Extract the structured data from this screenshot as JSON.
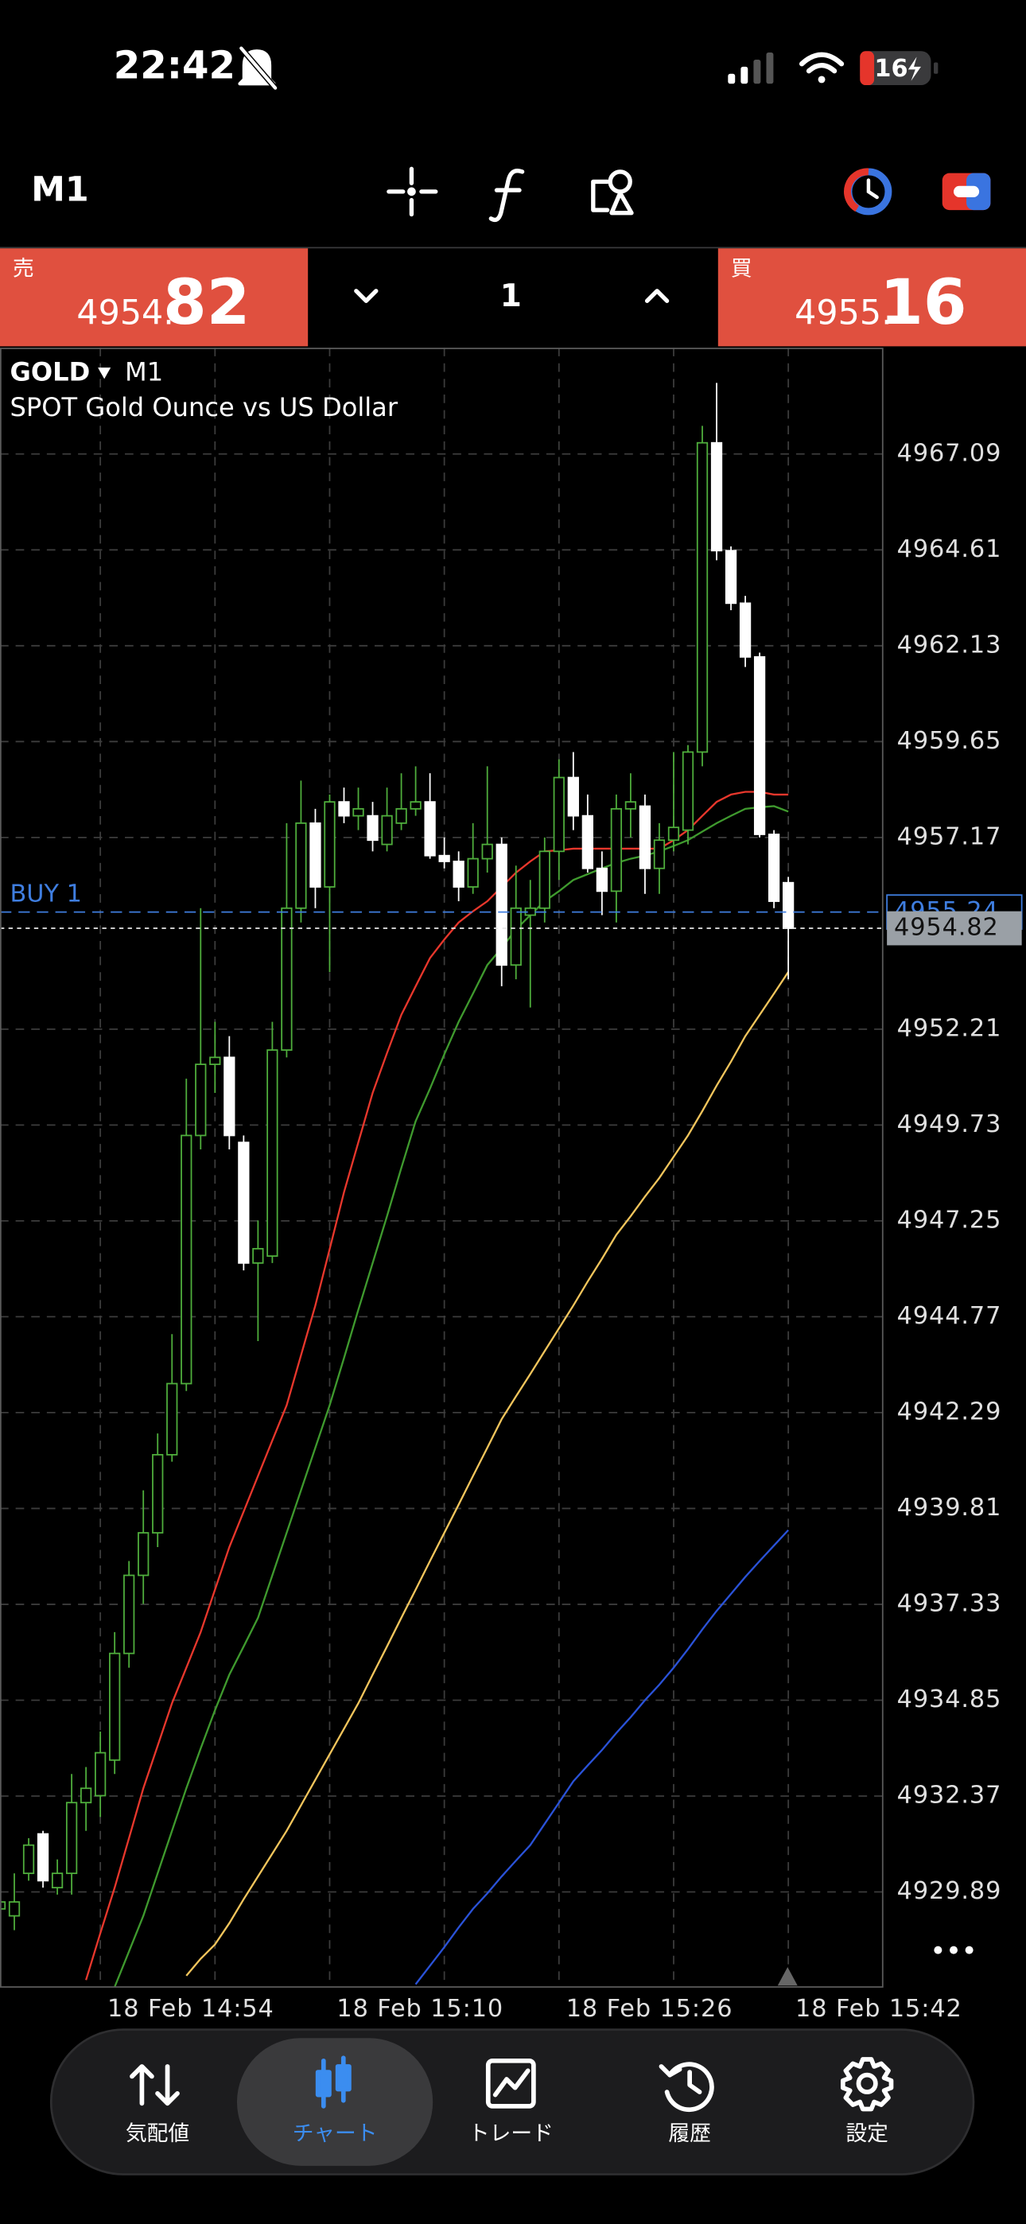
{
  "status_bar": {
    "time": "22:42",
    "battery": "16"
  },
  "toolbar": {
    "timeframe": "M1"
  },
  "trade_panel": {
    "sell_label": "売",
    "sell_price_small": "4954.",
    "sell_price_big": "82",
    "volume": "1",
    "buy_label": "買",
    "buy_price_small": "4955.",
    "buy_price_big": "16"
  },
  "chart_data": {
    "type": "candlestick",
    "symbol": "GOLD",
    "timeframe": "M1",
    "subtitle": "SPOT Gold Ounce vs US Dollar",
    "categories": [
      null,
      null,
      null,
      null,
      null,
      null,
      null,
      "18 Feb 14:54",
      null,
      null,
      null,
      null,
      null,
      null,
      null,
      null,
      null,
      null,
      null,
      null,
      null,
      null,
      null,
      "18 Feb 15:10",
      null,
      null,
      null,
      null,
      null,
      null,
      null,
      null,
      null,
      null,
      null,
      null,
      null,
      null,
      null,
      "18 Feb 15:26",
      null,
      null,
      null,
      null,
      null,
      null,
      null,
      null,
      null,
      null,
      null,
      null,
      null,
      null,
      null,
      "18 Feb 15:42"
    ],
    "open": [
      4929.45,
      4929.27,
      4930.37,
      4931.39,
      4930,
      4930.37,
      4932.2,
      4932.38,
      4933.3,
      4936.06,
      4938.08,
      4939.18,
      4941.2,
      4943.04,
      4949.46,
      4951.3,
      4951.48,
      4949.28,
      4946.16,
      4946.34,
      4951.67,
      4955.34,
      4957.54,
      4955.89,
      4958.09,
      4957.73,
      4957.73,
      4956.99,
      4957.54,
      4957.91,
      4958.09,
      4956.7,
      4956.55,
      4955.89,
      4956.62,
      4956.99,
      4953.87,
      4955.16,
      4955.34,
      4956.81,
      4958.72,
      4957.73,
      4956.37,
      4955.78,
      4957.91,
      4957.98,
      4956.37,
      4957.1,
      4957.36,
      4959.38,
      4967.38,
      4964.59,
      4963.23,
      4961.84,
      4957.25,
      4956
    ],
    "high": [
      4930,
      4930.37,
      4931.28,
      4931.47,
      4930.73,
      4932.94,
      4933.12,
      4934.04,
      4936.61,
      4938.45,
      4940.28,
      4941.75,
      4944.32,
      4950.93,
      4955.34,
      4952.4,
      4952.03,
      4949.46,
      4947.26,
      4952.4,
      4957.54,
      4958.64,
      4957.91,
      4958.28,
      4958.46,
      4958.46,
      4958.09,
      4958.46,
      4958.83,
      4959.01,
      4958.83,
      4957.17,
      4956.81,
      4957.54,
      4959.01,
      4957.17,
      4956.44,
      4956.07,
      4957.17,
      4959.19,
      4959.38,
      4958.28,
      4956.81,
      4958.28,
      4958.83,
      4958.28,
      4957.54,
      4959.38,
      4959.56,
      4967.82,
      4968.93,
      4964.7,
      4963.42,
      4961.95,
      4957.36,
      4956.15
    ],
    "low": [
      4929.08,
      4928.9,
      4930.18,
      4930,
      4929.82,
      4929.82,
      4931.47,
      4931.83,
      4932.94,
      4935.69,
      4937.34,
      4938.81,
      4941.02,
      4942.85,
      4949.1,
      4950.56,
      4949.1,
      4945.97,
      4944.14,
      4946.16,
      4951.48,
      4954.97,
      4955.34,
      4953.69,
      4957.54,
      4957.36,
      4956.81,
      4956.81,
      4957.36,
      4957.73,
      4956.62,
      4956.37,
      4955.52,
      4955.71,
      4956.26,
      4953.32,
      4953.5,
      4952.77,
      4954.97,
      4956.07,
      4957.36,
      4956.26,
      4955.16,
      4954.97,
      4957.17,
      4955.71,
      4955.71,
      4956.81,
      4956.99,
      4959.01,
      4964.34,
      4963.05,
      4961.58,
      4957.17,
      4955.34,
      4953.5
    ],
    "close": [
      4929.63,
      4929.63,
      4931.1,
      4930.18,
      4930.37,
      4932.2,
      4932.57,
      4933.49,
      4936.06,
      4938.08,
      4939.18,
      4941.2,
      4943.04,
      4949.46,
      4951.3,
      4951.48,
      4949.46,
      4946.16,
      4946.53,
      4951.67,
      4955.34,
      4957.54,
      4955.89,
      4958.09,
      4957.73,
      4957.91,
      4957.1,
      4957.73,
      4957.91,
      4958.09,
      4956.7,
      4956.55,
      4955.89,
      4956.62,
      4956.99,
      4953.87,
      4955.34,
      4955.34,
      4956.81,
      4958.72,
      4957.73,
      4956.37,
      4955.78,
      4957.91,
      4958.09,
      4956.37,
      4957.1,
      4957.43,
      4959.38,
      4967.38,
      4964.59,
      4963.23,
      4961.84,
      4957.25,
      4955.52,
      4954.82
    ],
    "up_color": "#4fae3c",
    "down_color": "#ffffff",
    "series": [
      {
        "color": "#e8372c",
        "values": [
          null,
          null,
          null,
          null,
          null,
          null,
          4927.61,
          4928.82,
          4930,
          4931.28,
          4932.57,
          4933.67,
          4934.77,
          4935.69,
          4936.61,
          4937.71,
          4938.81,
          4939.73,
          4940.65,
          4941.57,
          4942.48,
          4943.77,
          4945.06,
          4946.52,
          4947.99,
          4949.28,
          4950.56,
          4951.59,
          4952.58,
          4953.32,
          4954.05,
          4954.53,
          4954.97,
          4955.26,
          4955.52,
          4955.89,
          4956.26,
          4956.55,
          4956.81,
          4956.84,
          4956.88,
          4956.88,
          4956.88,
          4956.88,
          4956.88,
          4956.88,
          4956.88,
          4957.1,
          4957.36,
          4957.73,
          4958.09,
          4958.28,
          4958.35,
          4958.35,
          4958.28,
          4958.28
        ]
      },
      {
        "color": "#3f9a2e",
        "values": [
          null,
          null,
          null,
          null,
          null,
          null,
          null,
          null,
          4927.43,
          4928.35,
          4929.27,
          4930.37,
          4931.47,
          4932.57,
          4933.6,
          4934.59,
          4935.51,
          4936.24,
          4936.98,
          4938.08,
          4939.18,
          4940.28,
          4941.38,
          4942.48,
          4943.7,
          4944.95,
          4946.16,
          4947.37,
          4948.62,
          4949.83,
          4950.67,
          4951.56,
          4952.4,
          4953.13,
          4953.87,
          4954.31,
          4954.79,
          4955.16,
          4955.52,
          4955.78,
          4956.07,
          4956.22,
          4956.37,
          4956.51,
          4956.62,
          4956.7,
          4956.81,
          4956.95,
          4957.1,
          4957.32,
          4957.54,
          4957.73,
          4957.91,
          4957.95,
          4957.98,
          4957.84
        ]
      },
      {
        "color": "#f2c55c",
        "values": [
          null,
          null,
          null,
          null,
          null,
          null,
          null,
          null,
          null,
          null,
          null,
          null,
          null,
          4927.72,
          4928.16,
          4928.53,
          4929.08,
          4929.7,
          4930.29,
          4930.88,
          4931.47,
          4932.13,
          4932.79,
          4933.45,
          4934.11,
          4934.77,
          4935.51,
          4936.24,
          4936.98,
          4937.71,
          4938.45,
          4939.18,
          4939.91,
          4940.65,
          4941.38,
          4942.12,
          4942.71,
          4943.29,
          4943.88,
          4944.47,
          4945.06,
          4945.68,
          4946.27,
          4946.89,
          4947.37,
          4947.88,
          4948.36,
          4948.91,
          4949.46,
          4950.09,
          4950.75,
          4951.37,
          4952.03,
          4952.58,
          4953.13,
          4953.69
        ]
      },
      {
        "color": "#2a52d8",
        "values": [
          null,
          null,
          null,
          null,
          null,
          null,
          null,
          null,
          null,
          null,
          null,
          null,
          null,
          null,
          null,
          null,
          null,
          null,
          null,
          null,
          null,
          null,
          null,
          null,
          null,
          null,
          null,
          null,
          null,
          4927.5,
          4927.98,
          4928.46,
          4928.97,
          4929.45,
          4929.85,
          4930.29,
          4930.7,
          4931.1,
          4931.65,
          4932.2,
          4932.75,
          4933.16,
          4933.56,
          4934,
          4934.41,
          4934.85,
          4935.25,
          4935.69,
          4936.17,
          4936.68,
          4937.16,
          4937.6,
          4938.04,
          4938.45,
          4938.85,
          4939.25
        ]
      }
    ],
    "price_lines": [
      {
        "label": "BUY 1",
        "value": 4955.24,
        "color": "#3f7ee0"
      },
      {
        "value": 4954.82,
        "color": "#e8e8e8"
      }
    ],
    "ylim": [
      4927.43,
      4969.84
    ],
    "yticks": [
      4929.89,
      4932.37,
      4934.85,
      4937.33,
      4939.81,
      4942.29,
      4944.77,
      4947.25,
      4949.73,
      4952.21,
      4957.17,
      4959.65,
      4962.13,
      4964.61,
      4967.09
    ],
    "grid": true
  },
  "tab_bar": {
    "tabs": [
      "気配値",
      "チャート",
      "トレード",
      "履歴",
      "設定"
    ],
    "active": 1
  }
}
